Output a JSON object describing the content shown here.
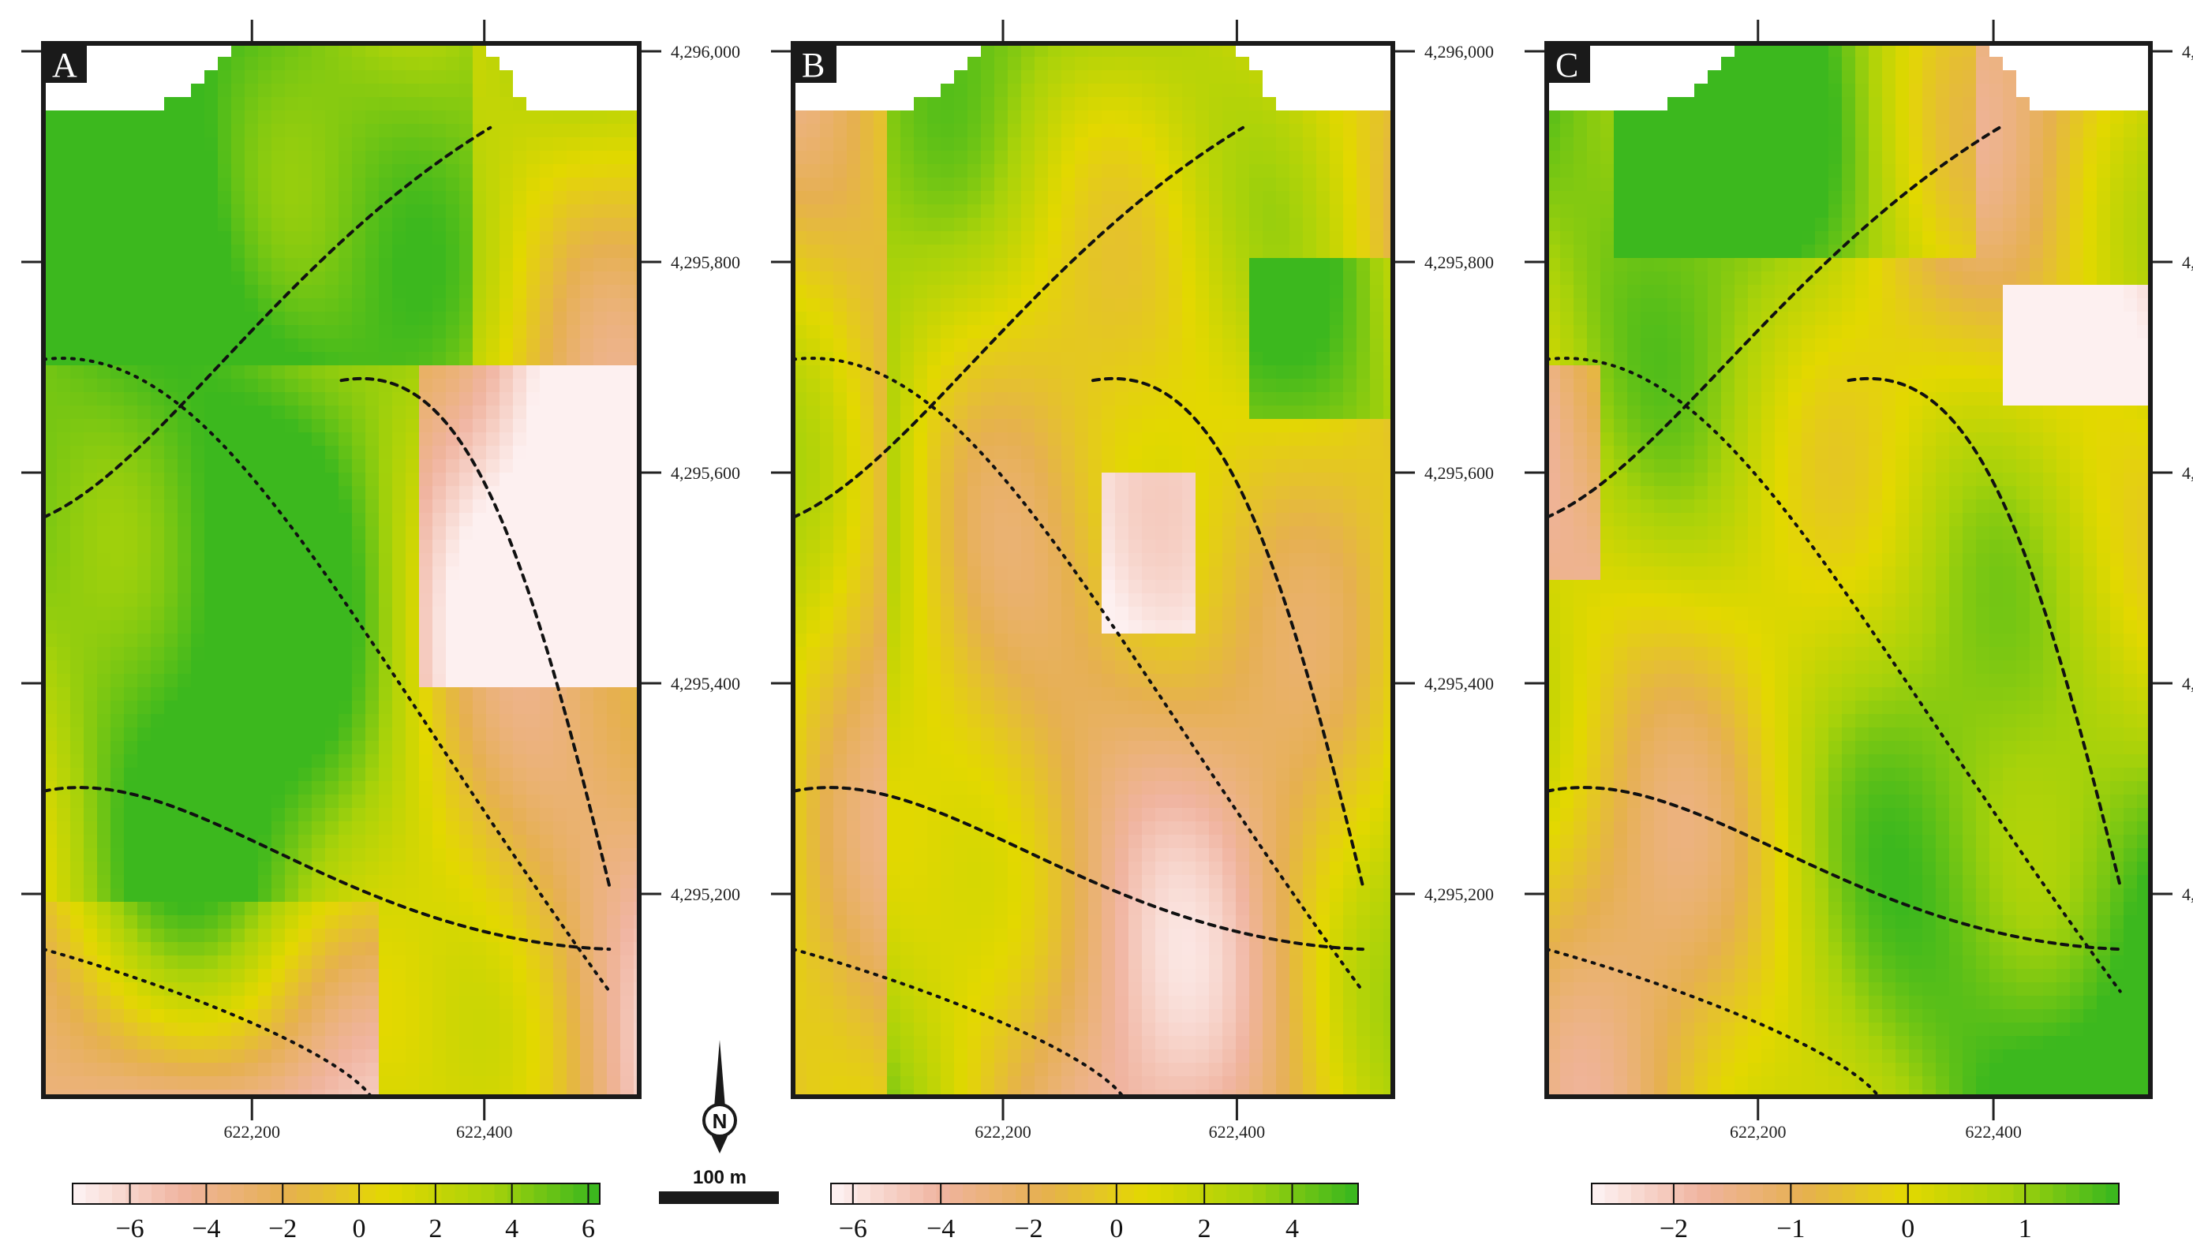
{
  "panels": [
    {
      "letter": "A",
      "colorbar": {
        "ticks": [
          "−6",
          "−4",
          "−2",
          "0",
          "2",
          "4",
          "6"
        ],
        "min": -7.5,
        "max": 6.3,
        "tick_values": [
          -6,
          -4,
          -2,
          0,
          2,
          4,
          6
        ]
      },
      "field_bias": 0.0
    },
    {
      "letter": "B",
      "colorbar": {
        "ticks": [
          "−6",
          "−4",
          "−2",
          "0",
          "2",
          "4"
        ],
        "min": -6.5,
        "max": 5.5,
        "tick_values": [
          -6,
          -4,
          -2,
          0,
          2,
          4
        ]
      },
      "field_bias": 0.05
    },
    {
      "letter": "C",
      "colorbar": {
        "ticks": [
          "−2",
          "−1",
          "0",
          "1"
        ],
        "min": -2.7,
        "max": 1.8,
        "tick_values": [
          -2,
          -1,
          0,
          1
        ]
      },
      "field_bias": 0.2
    }
  ],
  "x_ticks": [
    "622,200",
    "622,400"
  ],
  "y_ticks": [
    "4,296,000",
    "4,295,800",
    "4,295,600",
    "4,295,400",
    "4,295,200"
  ],
  "scale_bar": {
    "label": "100 m"
  },
  "north_arrow": {
    "label": "N"
  },
  "colormap": [
    "#fdf0f0",
    "#f0b4a0",
    "#e6b050",
    "#e3d800",
    "#a8d20a",
    "#3cb81e"
  ]
}
